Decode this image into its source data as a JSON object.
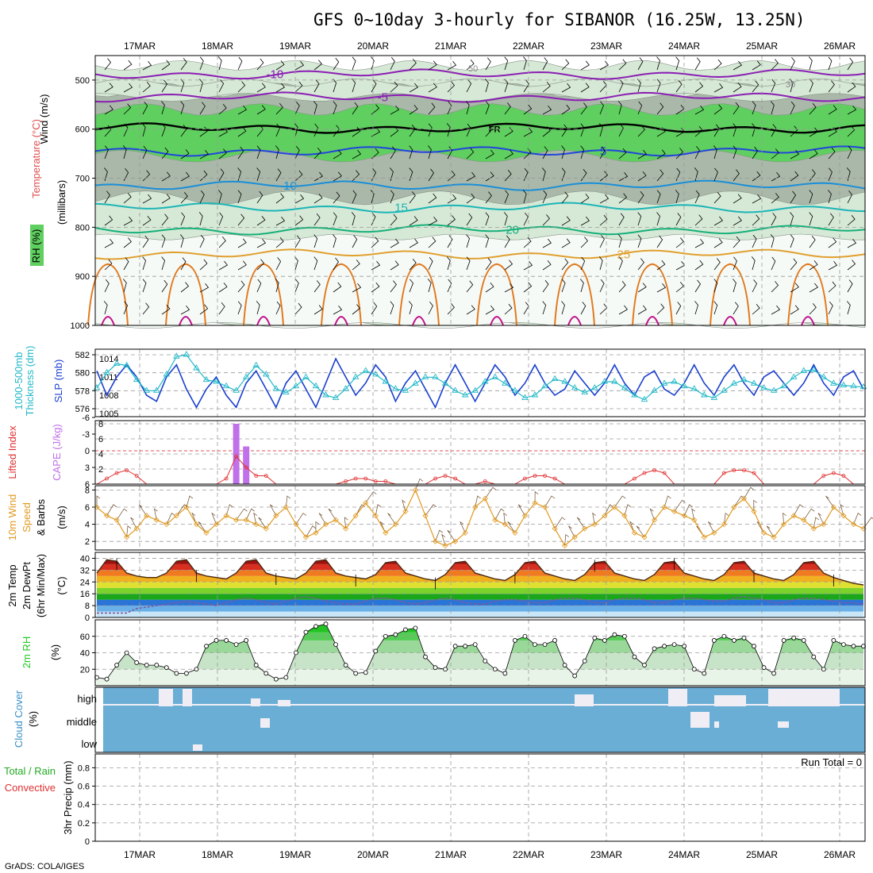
{
  "header": {
    "title": "GFS 0~10day 3-hourly for SIBANOR (16.25W, 13.25N)",
    "footer": "GrADS: COLA/IGES"
  },
  "colors": {
    "wind_barb": "#000000",
    "rh_dark": "#a9b8a9",
    "rh_mid": "#d6e8d6",
    "rh_green": "#5fcf5f",
    "t_purple": "#8b1fb3",
    "t_black": "#000000",
    "t_blue": "#2244dd",
    "t_lightblue": "#1b8fd8",
    "t_cyan": "#1bb6b6",
    "t_teal": "#16b07a",
    "t_orange": "#e0a030",
    "t_dorange": "#e07a20",
    "t_magenta": "#c0108a",
    "slp": "#1a3fcf",
    "thickness": "#22b8c8",
    "cape": "#c070e8",
    "li": "#e03030",
    "wind10": "#e09a20",
    "temp_line": "#4a2a10",
    "dew_line": "#7a5aa0",
    "rh2m": "#22cc22",
    "cloud_bg": "#6aaed6",
    "cloud_fg": "#f0eef4"
  },
  "chart_data": [
    {
      "type": "area",
      "panel": "upper-air",
      "ylabel_parts": [
        "RH (%)",
        "Temperature (°C)",
        "Wind (m/s)"
      ],
      "ylabel_sub": "(millibars)",
      "y_ticks": [
        500,
        600,
        700,
        800,
        900,
        1000
      ],
      "ylim": [
        450,
        1000
      ],
      "x_date_labels": [
        "17MAR",
        "18MAR",
        "19MAR",
        "20MAR",
        "21MAR",
        "22MAR",
        "23MAR",
        "24MAR",
        "25MAR",
        "26MAR"
      ],
      "isotherms": [
        {
          "label": "-10",
          "pressure": 488
        },
        {
          "label": "-5",
          "pressure": 535
        },
        {
          "label": "FR",
          "pressure": 598
        },
        {
          "label": "5",
          "pressure": 645
        },
        {
          "label": "10",
          "pressure": 715
        },
        {
          "label": "15",
          "pressure": 760
        },
        {
          "label": "20",
          "pressure": 805
        },
        {
          "label": "25",
          "pressure": 855
        }
      ],
      "rh_labels": [
        "50",
        "30"
      ]
    },
    {
      "type": "line",
      "panel": "slp-thickness",
      "ylabel_left": "1000-500mb Thickness (dm)",
      "ylabel_right": "SLP (mb)",
      "left_ticks": [
        576,
        578,
        580,
        582
      ],
      "right_ticks": [
        1005,
        1008,
        1011,
        1014
      ],
      "series": [
        {
          "name": "SLP (mb)",
          "values": [
            1012,
            1008,
            1011,
            1013,
            1011,
            1008,
            1007,
            1011,
            1013,
            1009,
            1006,
            1009,
            1011,
            1008,
            1006,
            1010,
            1012,
            1009,
            1006,
            1010,
            1012,
            1009,
            1006,
            1010,
            1014,
            1011,
            1008,
            1010,
            1013,
            1011,
            1007,
            1010,
            1012,
            1009,
            1006,
            1010,
            1013,
            1010,
            1007,
            1010,
            1013,
            1011,
            1008,
            1010,
            1013,
            1010,
            1008,
            1009,
            1012,
            1010,
            1008,
            1010,
            1013,
            1010,
            1008,
            1011,
            1012,
            1009,
            1008,
            1010,
            1013,
            1010,
            1008,
            1011,
            1013,
            1010,
            1008,
            1011,
            1012,
            1010,
            1008,
            1010,
            1013,
            1010,
            1008,
            1011,
            1012,
            1009
          ]
        },
        {
          "name": "1000-500mb Thickness (dm)",
          "values": [
            578.3,
            580.0,
            581.0,
            580.8,
            579.2,
            578.0,
            578.0,
            579.8,
            581.8,
            582.0,
            580.5,
            579.2,
            579.0,
            578.5,
            578.0,
            579.5,
            580.8,
            579.8,
            578.2,
            577.8,
            578.5,
            579.5,
            578.5,
            577.5,
            577.2,
            578.2,
            579.5,
            580.2,
            579.8,
            579.0,
            578.2,
            578.0,
            578.8,
            579.5,
            579.5,
            578.8,
            578.0,
            577.5,
            578.0,
            579.0,
            579.5,
            578.8,
            578.0,
            577.2,
            577.5,
            578.5,
            579.3,
            579.0,
            578.3,
            577.8,
            578.3,
            579.0,
            579.0,
            578.3,
            577.5,
            577.0,
            578.0,
            578.8,
            579.0,
            578.5,
            578.2,
            577.5,
            577.2,
            578.0,
            578.8,
            579.2,
            578.8,
            578.3,
            578.0,
            578.5,
            579.5,
            580.2,
            580.3,
            579.5,
            578.8,
            578.6,
            578.5,
            578.4
          ]
        }
      ]
    },
    {
      "type": "bar",
      "panel": "lifted-index-cape",
      "ylabel_left": "Lifted Index",
      "ylabel_right": "CAPE (J/kg)",
      "left_ticks": [
        "-6",
        "-3",
        "0",
        "3",
        "6"
      ],
      "right_ticks": [
        2,
        4,
        6,
        8
      ],
      "cape_bars": [
        {
          "index": 14,
          "value": 8
        },
        {
          "index": 15,
          "value": 5
        }
      ],
      "li_values": [
        6,
        5,
        4,
        3.5,
        4.5,
        6,
        6,
        6,
        6,
        6,
        6,
        6,
        6,
        5,
        1,
        3,
        4.5,
        4.5,
        6,
        6,
        6,
        6,
        6,
        6,
        6,
        5.5,
        5,
        5,
        5.5,
        5.5,
        6,
        6,
        6,
        6,
        5,
        4.5,
        5,
        6,
        6,
        5.5,
        6,
        6,
        6,
        5,
        4.5,
        4.5,
        5,
        6,
        6,
        6,
        6,
        6,
        6,
        6,
        5,
        4,
        3.5,
        4,
        6,
        6,
        6,
        6,
        6,
        4,
        3.5,
        3.5,
        4,
        6,
        6,
        6,
        6,
        6,
        6,
        4.5,
        4,
        4.5,
        6,
        6
      ]
    },
    {
      "type": "line",
      "panel": "wind-10m",
      "ylabel": [
        "10m Wind",
        "Speed",
        "& Barbs"
      ],
      "yunit": "(m/s)",
      "y_ticks": [
        2,
        4,
        6,
        8
      ],
      "ylim": [
        1,
        8.5
      ],
      "series": [
        {
          "name": "10m Wind Speed",
          "values": [
            6,
            5,
            4.5,
            2.5,
            3.5,
            5,
            4.5,
            4,
            5,
            6,
            4,
            3,
            4,
            5,
            4.5,
            4.5,
            4,
            3.5,
            5,
            6,
            4,
            2.5,
            3,
            4,
            4.5,
            3.5,
            5,
            6.5,
            5,
            3,
            4,
            5.5,
            8,
            5,
            2,
            1.5,
            2,
            3,
            6,
            7,
            4.5,
            4,
            3,
            5,
            6.5,
            6,
            3.5,
            1.5,
            2.5,
            3.5,
            4,
            5,
            6,
            5,
            3,
            2.5,
            4.5,
            6,
            5.5,
            5,
            4.5,
            2.5,
            3,
            4,
            6,
            7,
            5.5,
            3,
            2.5,
            4,
            5,
            4.5,
            3.5,
            4,
            6,
            5,
            4,
            3.5
          ]
        }
      ]
    },
    {
      "type": "area",
      "panel": "temp-dewpoint",
      "ylabel": [
        "2m Temp",
        "2m DewPt",
        "(6hr Min/Max)"
      ],
      "yunit": "(°C)",
      "y_ticks": [
        "0",
        "8",
        "16",
        "24",
        "32",
        "40"
      ],
      "ylim": [
        0,
        44
      ],
      "series": [
        {
          "name": "2m Temp",
          "values": [
            30,
            39,
            38,
            30,
            28,
            27,
            27,
            30,
            38,
            39,
            30,
            28,
            27,
            26,
            30,
            38,
            39,
            30,
            28,
            27,
            26,
            30,
            38,
            39,
            30,
            28,
            27,
            26,
            29,
            37,
            38,
            30,
            28,
            26,
            25,
            29,
            37,
            38,
            30,
            28,
            26,
            25,
            29,
            37,
            38,
            30,
            28,
            26,
            25,
            29,
            37,
            38,
            30,
            28,
            26,
            25,
            29,
            37,
            38,
            30,
            28,
            26,
            25,
            29,
            37,
            38,
            30,
            28,
            26,
            25,
            29,
            37,
            38,
            30,
            27,
            25,
            23,
            22
          ]
        },
        {
          "name": "2m DewPt",
          "values": [
            3,
            3,
            3,
            3,
            6,
            7,
            8,
            9,
            10,
            11,
            10,
            9,
            8,
            10,
            12,
            13,
            12,
            10,
            9,
            11,
            13,
            14,
            13,
            11,
            10,
            9,
            9,
            11,
            13,
            13,
            12,
            10,
            9,
            10,
            12,
            13,
            12,
            10,
            9,
            9,
            11,
            12,
            12,
            11,
            10,
            10,
            12,
            13,
            13,
            12,
            10,
            10,
            12,
            13,
            13,
            12,
            10,
            10,
            12,
            13,
            13,
            12,
            11,
            11,
            13,
            14,
            13,
            12,
            10,
            10,
            12,
            13,
            13,
            12,
            11,
            10,
            10,
            9
          ]
        }
      ]
    },
    {
      "type": "area",
      "panel": "rh-2m",
      "ylabel": "2m RH",
      "yunit": "(%)",
      "y_ticks": [
        20,
        40,
        60
      ],
      "ylim": [
        0,
        80
      ],
      "series": [
        {
          "name": "2m RH",
          "values": [
            10,
            8,
            25,
            40,
            28,
            25,
            25,
            22,
            15,
            15,
            20,
            48,
            55,
            55,
            50,
            55,
            25,
            15,
            8,
            10,
            40,
            65,
            72,
            75,
            50,
            25,
            15,
            16,
            42,
            60,
            62,
            68,
            70,
            35,
            22,
            20,
            48,
            48,
            50,
            30,
            20,
            15,
            55,
            60,
            50,
            50,
            55,
            25,
            12,
            30,
            58,
            55,
            62,
            60,
            35,
            25,
            45,
            48,
            50,
            48,
            20,
            15,
            55,
            60,
            55,
            58,
            48,
            22,
            15,
            55,
            58,
            55,
            35,
            20,
            55,
            50,
            48,
            48
          ]
        }
      ]
    },
    {
      "type": "heatmap",
      "panel": "cloud-cover",
      "ylabel": "Cloud Cover",
      "yunit": "(%)",
      "levels": [
        "high",
        "middle",
        "low"
      ]
    },
    {
      "type": "bar",
      "panel": "precip",
      "ylabel_parts": [
        "Total / Rain",
        "Convective"
      ],
      "ylabel_main": "3hr Precip (mm)",
      "y_ticks": [
        "0",
        "0.2",
        "0.4",
        "0.6",
        "0.8"
      ],
      "ylim": [
        0,
        0.95
      ],
      "run_total": "Run Total = 0"
    }
  ],
  "date_labels_bottom": [
    "17MAR",
    "18MAR",
    "19MAR",
    "20MAR",
    "21MAR",
    "22MAR",
    "23MAR",
    "24MAR",
    "25MAR",
    "26MAR"
  ]
}
